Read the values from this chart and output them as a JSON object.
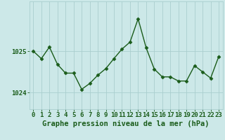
{
  "x": [
    0,
    1,
    2,
    3,
    4,
    5,
    6,
    7,
    8,
    9,
    10,
    11,
    12,
    13,
    14,
    15,
    16,
    17,
    18,
    19,
    20,
    21,
    22,
    23
  ],
  "y": [
    1025.0,
    1024.82,
    1025.1,
    1024.68,
    1024.47,
    1024.47,
    1024.08,
    1024.22,
    1024.42,
    1024.58,
    1024.82,
    1025.05,
    1025.22,
    1025.78,
    1025.08,
    1024.57,
    1024.38,
    1024.38,
    1024.28,
    1024.28,
    1024.65,
    1024.5,
    1024.35,
    1024.87
  ],
  "line_color": "#1a5c1a",
  "marker_color": "#1a5c1a",
  "bg_color": "#cce8e8",
  "grid_color": "#aacece",
  "axis_label_color": "#1a5c1a",
  "xlabel": "Graphe pression niveau de la mer (hPa)",
  "yticks": [
    1024,
    1025
  ],
  "ylim": [
    1023.6,
    1026.2
  ],
  "xlim": [
    -0.5,
    23.5
  ],
  "xlabel_fontsize": 7.5,
  "tick_fontsize": 6.5
}
